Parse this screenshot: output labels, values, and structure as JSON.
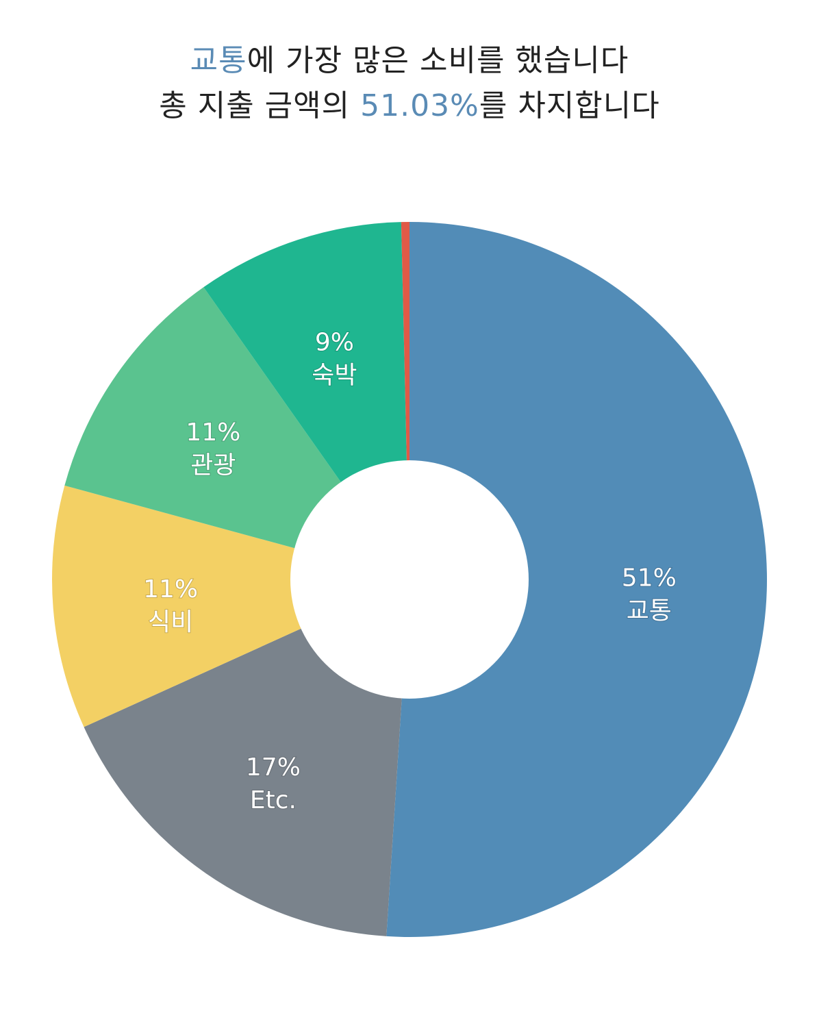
{
  "header": {
    "line1": {
      "highlight": "교통",
      "rest": "에 가장 많은 소비를 했습니다"
    },
    "line2": {
      "prefix": "총 지출 금액의 ",
      "highlight": "51.03%",
      "suffix": "를 차지합니다"
    }
  },
  "colors": {
    "accent": "#5a8bb5",
    "text": "#222222",
    "hole": "#ffffff"
  },
  "chart_data": {
    "type": "pie",
    "title": "",
    "donut": true,
    "slices": [
      {
        "name": "교통",
        "value": 51.03,
        "pct_label": "51%",
        "color": "#528cb7"
      },
      {
        "name": "Etc.",
        "value": 17.2,
        "pct_label": "17%",
        "color": "#7a838c"
      },
      {
        "name": "식비",
        "value": 11.0,
        "pct_label": "11%",
        "color": "#f3d064"
      },
      {
        "name": "관광",
        "value": 11.0,
        "pct_label": "11%",
        "color": "#5ac38f"
      },
      {
        "name": "숙박",
        "value": 9.4,
        "pct_label": "9%",
        "color": "#1fb690"
      },
      {
        "name": "",
        "value": 0.37,
        "pct_label": "",
        "color": "#e05a47"
      }
    ]
  }
}
